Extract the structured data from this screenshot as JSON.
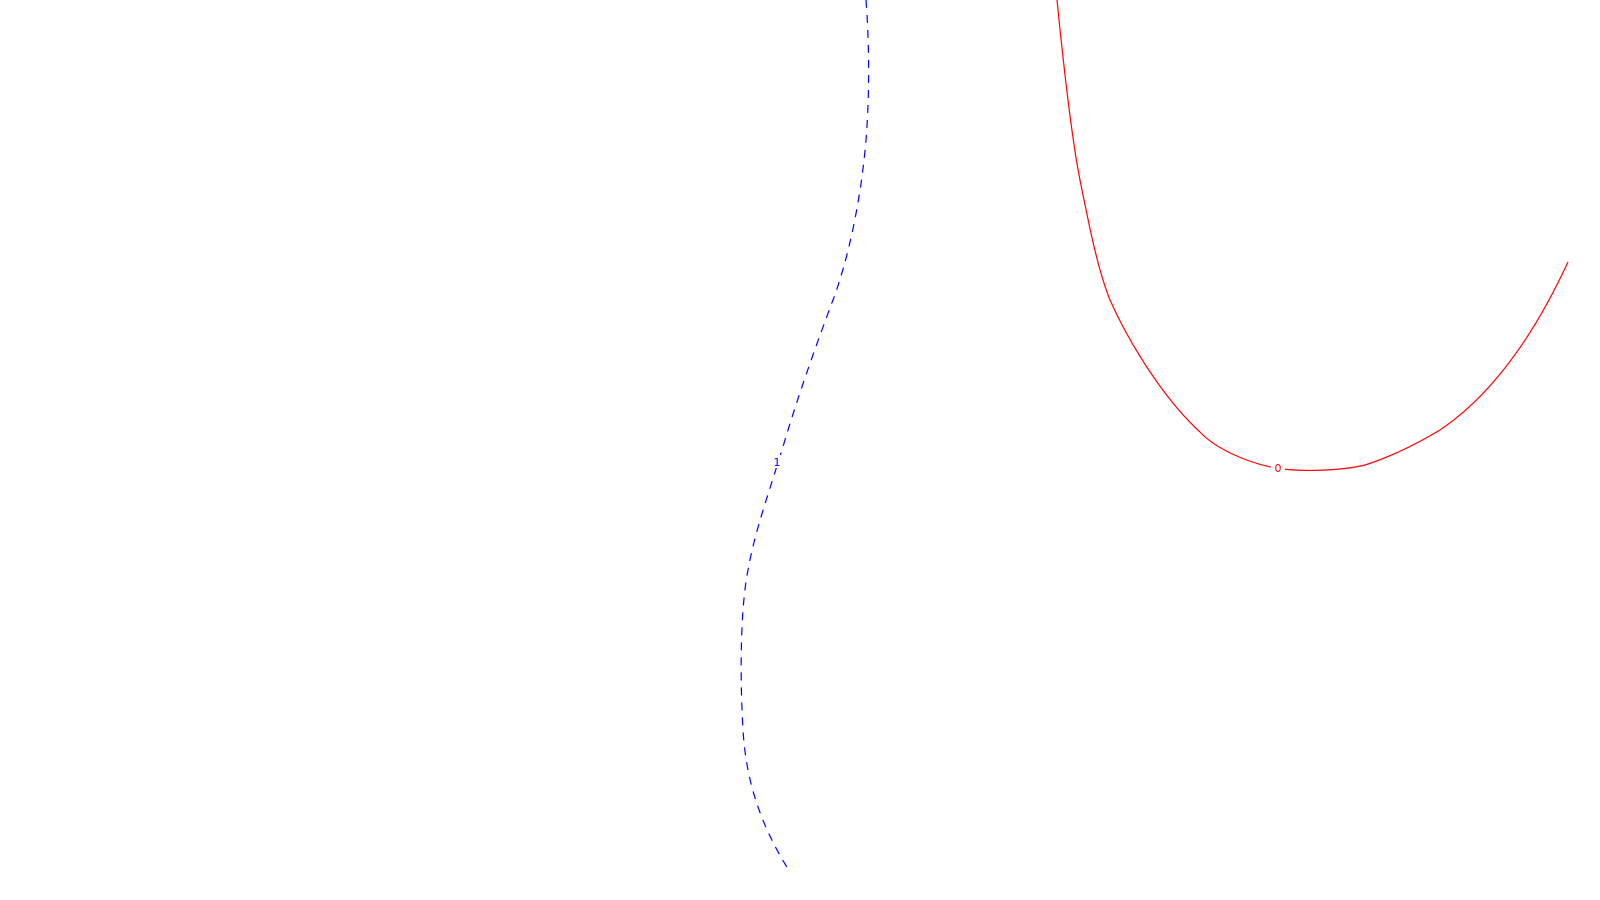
{
  "contours": [
    {
      "id": "red",
      "label": "0",
      "color": "#ff0000",
      "style": "solid"
    },
    {
      "id": "blue",
      "label": "1",
      "color": "#0000ff",
      "style": "dashed"
    }
  ]
}
